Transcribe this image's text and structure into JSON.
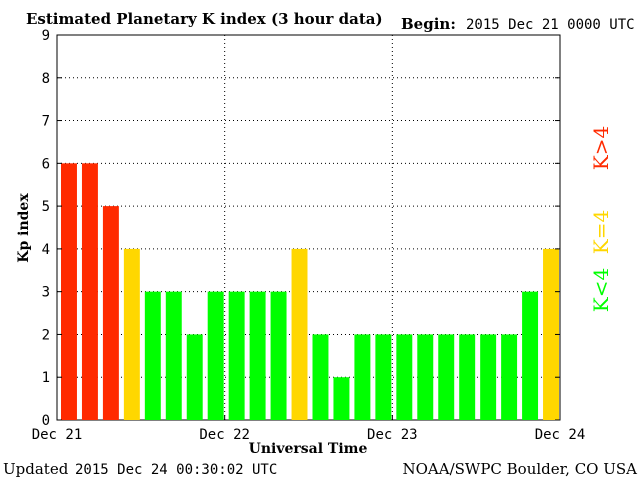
{
  "chart_data": {
    "type": "bar",
    "title": "Estimated Planetary K index (3 hour data)",
    "begin_label": "Begin:",
    "begin_value": "2015 Dec 21 0000 UTC",
    "ylabel": "Kp index",
    "xlabel": "Universal Time",
    "ylim": [
      0,
      9
    ],
    "yticks": [
      "0",
      "1",
      "2",
      "3",
      "4",
      "5",
      "6",
      "7",
      "8",
      "9"
    ],
    "xticks": [
      "Dec 21",
      "Dec 22",
      "Dec 23",
      "Dec 24"
    ],
    "grid": true,
    "values": [
      6,
      6,
      5,
      4,
      3,
      3,
      2,
      3,
      3,
      3,
      3,
      4,
      2,
      1,
      2,
      2,
      2,
      2,
      2,
      2,
      2,
      2,
      3,
      4
    ],
    "colors": {
      "high": "#ff2a00",
      "storm": "#ffd700",
      "quiet": "#00ff00"
    },
    "legend": [
      {
        "text": "K>4",
        "color": "#ff2a00"
      },
      {
        "text": "K=4",
        "color": "#ffd700"
      },
      {
        "text": "K<4",
        "color": "#00ff00"
      }
    ]
  },
  "footer": {
    "updated_label": "Updated",
    "updated_value": "2015 Dec 24 00:30:02 UTC",
    "source": "NOAA/SWPC Boulder, CO USA"
  }
}
